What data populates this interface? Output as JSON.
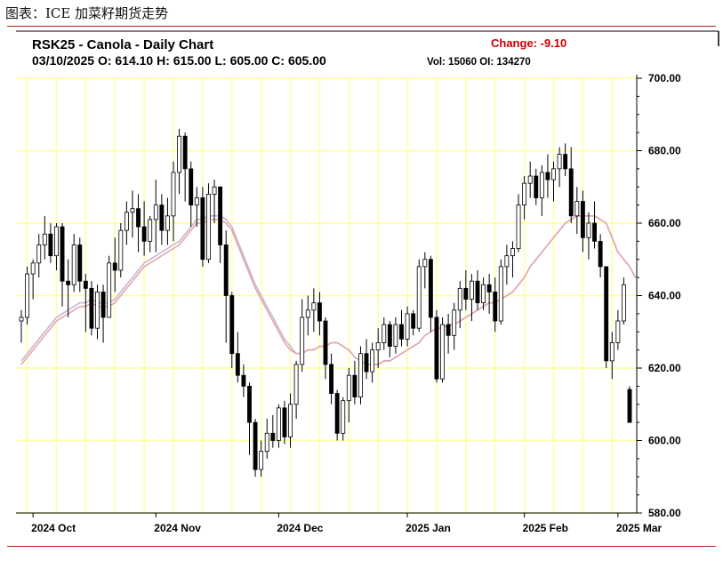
{
  "caption": "图表：ICE 加菜籽期货走势",
  "header": {
    "title": "RSK25 - Canola - Daily Chart",
    "ohlc": "03/10/2025 O: 614.10 H: 615.00 L: 605.00 C: 605.00",
    "volume": "Vol: 15060 OI: 134270",
    "change": "Change: -9.10"
  },
  "colors": {
    "grid": "#ffff99",
    "up": "#ffffff",
    "down": "#000000",
    "ma_a": "#c8b4d8",
    "ma_b": "#e0a8a8",
    "change": "#cc0000",
    "rule": "#b22222"
  },
  "chart_data": {
    "type": "candlestick",
    "ylim": [
      580,
      700
    ],
    "yticks": [
      "700.00",
      "680.00",
      "660.00",
      "640.00",
      "620.00",
      "600.00",
      "580.00"
    ],
    "xtick_labels": [
      "2024 Oct",
      "2024 Nov",
      "2024 Dec",
      "2025 Jan",
      "2025 Feb",
      "2025 Mar"
    ],
    "grid": true,
    "candles": [
      {
        "o": 633,
        "h": 636,
        "l": 627,
        "c": 634
      },
      {
        "o": 634,
        "h": 648,
        "l": 632,
        "c": 646
      },
      {
        "o": 646,
        "h": 650,
        "l": 639,
        "c": 649
      },
      {
        "o": 649,
        "h": 657,
        "l": 645,
        "c": 654
      },
      {
        "o": 654,
        "h": 662,
        "l": 650,
        "c": 657
      },
      {
        "o": 657,
        "h": 660,
        "l": 649,
        "c": 651
      },
      {
        "o": 651,
        "h": 660,
        "l": 647,
        "c": 659
      },
      {
        "o": 659,
        "h": 660,
        "l": 637,
        "c": 644
      },
      {
        "o": 644,
        "h": 650,
        "l": 634,
        "c": 643
      },
      {
        "o": 643,
        "h": 657,
        "l": 641,
        "c": 654
      },
      {
        "o": 654,
        "h": 656,
        "l": 641,
        "c": 644
      },
      {
        "o": 644,
        "h": 646,
        "l": 630,
        "c": 642
      },
      {
        "o": 642,
        "h": 644,
        "l": 629,
        "c": 631
      },
      {
        "o": 631,
        "h": 643,
        "l": 628,
        "c": 641
      },
      {
        "o": 641,
        "h": 643,
        "l": 627,
        "c": 634
      },
      {
        "o": 634,
        "h": 651,
        "l": 634,
        "c": 649
      },
      {
        "o": 649,
        "h": 656,
        "l": 641,
        "c": 647
      },
      {
        "o": 647,
        "h": 660,
        "l": 645,
        "c": 658
      },
      {
        "o": 658,
        "h": 666,
        "l": 654,
        "c": 663
      },
      {
        "o": 663,
        "h": 669,
        "l": 656,
        "c": 664
      },
      {
        "o": 664,
        "h": 668,
        "l": 652,
        "c": 659
      },
      {
        "o": 659,
        "h": 666,
        "l": 651,
        "c": 655
      },
      {
        "o": 655,
        "h": 662,
        "l": 652,
        "c": 661
      },
      {
        "o": 661,
        "h": 672,
        "l": 652,
        "c": 665
      },
      {
        "o": 665,
        "h": 668,
        "l": 654,
        "c": 658
      },
      {
        "o": 658,
        "h": 667,
        "l": 654,
        "c": 662
      },
      {
        "o": 662,
        "h": 677,
        "l": 655,
        "c": 674
      },
      {
        "o": 674,
        "h": 686,
        "l": 668,
        "c": 684
      },
      {
        "o": 684,
        "h": 685,
        "l": 666,
        "c": 675
      },
      {
        "o": 675,
        "h": 677,
        "l": 659,
        "c": 665
      },
      {
        "o": 665,
        "h": 670,
        "l": 659,
        "c": 667
      },
      {
        "o": 667,
        "h": 670,
        "l": 648,
        "c": 650
      },
      {
        "o": 650,
        "h": 671,
        "l": 649,
        "c": 668
      },
      {
        "o": 668,
        "h": 672,
        "l": 660,
        "c": 670
      },
      {
        "o": 670,
        "h": 670,
        "l": 649,
        "c": 654
      },
      {
        "o": 654,
        "h": 658,
        "l": 627,
        "c": 640
      },
      {
        "o": 640,
        "h": 641,
        "l": 620,
        "c": 624
      },
      {
        "o": 624,
        "h": 630,
        "l": 616,
        "c": 618
      },
      {
        "o": 618,
        "h": 621,
        "l": 612,
        "c": 615
      },
      {
        "o": 615,
        "h": 616,
        "l": 596,
        "c": 605
      },
      {
        "o": 605,
        "h": 606,
        "l": 590,
        "c": 592
      },
      {
        "o": 592,
        "h": 600,
        "l": 590,
        "c": 597
      },
      {
        "o": 597,
        "h": 606,
        "l": 595,
        "c": 602
      },
      {
        "o": 602,
        "h": 607,
        "l": 598,
        "c": 600
      },
      {
        "o": 600,
        "h": 610,
        "l": 598,
        "c": 609
      },
      {
        "o": 609,
        "h": 611,
        "l": 599,
        "c": 601
      },
      {
        "o": 601,
        "h": 613,
        "l": 598,
        "c": 610
      },
      {
        "o": 610,
        "h": 622,
        "l": 606,
        "c": 621
      },
      {
        "o": 621,
        "h": 639,
        "l": 619,
        "c": 634
      },
      {
        "o": 634,
        "h": 640,
        "l": 629,
        "c": 636
      },
      {
        "o": 636,
        "h": 642,
        "l": 630,
        "c": 638
      },
      {
        "o": 638,
        "h": 641,
        "l": 629,
        "c": 633
      },
      {
        "o": 633,
        "h": 634,
        "l": 617,
        "c": 621
      },
      {
        "o": 621,
        "h": 624,
        "l": 610,
        "c": 613
      },
      {
        "o": 613,
        "h": 614,
        "l": 600,
        "c": 602
      },
      {
        "o": 602,
        "h": 612,
        "l": 600,
        "c": 611
      },
      {
        "o": 611,
        "h": 620,
        "l": 605,
        "c": 618
      },
      {
        "o": 618,
        "h": 622,
        "l": 610,
        "c": 612
      },
      {
        "o": 612,
        "h": 626,
        "l": 610,
        "c": 624
      },
      {
        "o": 624,
        "h": 628,
        "l": 617,
        "c": 619
      },
      {
        "o": 619,
        "h": 627,
        "l": 616,
        "c": 625
      },
      {
        "o": 625,
        "h": 631,
        "l": 620,
        "c": 627
      },
      {
        "o": 627,
        "h": 634,
        "l": 625,
        "c": 632
      },
      {
        "o": 632,
        "h": 633,
        "l": 623,
        "c": 626
      },
      {
        "o": 626,
        "h": 634,
        "l": 624,
        "c": 632
      },
      {
        "o": 632,
        "h": 636,
        "l": 626,
        "c": 628
      },
      {
        "o": 628,
        "h": 637,
        "l": 626,
        "c": 635
      },
      {
        "o": 635,
        "h": 636,
        "l": 629,
        "c": 631
      },
      {
        "o": 631,
        "h": 650,
        "l": 630,
        "c": 648
      },
      {
        "o": 648,
        "h": 652,
        "l": 642,
        "c": 650
      },
      {
        "o": 650,
        "h": 651,
        "l": 630,
        "c": 634
      },
      {
        "o": 634,
        "h": 636,
        "l": 616,
        "c": 617
      },
      {
        "o": 617,
        "h": 634,
        "l": 616,
        "c": 632
      },
      {
        "o": 632,
        "h": 635,
        "l": 624,
        "c": 629
      },
      {
        "o": 629,
        "h": 638,
        "l": 625,
        "c": 636
      },
      {
        "o": 636,
        "h": 644,
        "l": 631,
        "c": 642
      },
      {
        "o": 642,
        "h": 647,
        "l": 636,
        "c": 639
      },
      {
        "o": 639,
        "h": 646,
        "l": 633,
        "c": 644
      },
      {
        "o": 644,
        "h": 647,
        "l": 636,
        "c": 638
      },
      {
        "o": 638,
        "h": 645,
        "l": 636,
        "c": 643
      },
      {
        "o": 643,
        "h": 646,
        "l": 635,
        "c": 641
      },
      {
        "o": 641,
        "h": 645,
        "l": 630,
        "c": 633
      },
      {
        "o": 633,
        "h": 650,
        "l": 632,
        "c": 648
      },
      {
        "o": 648,
        "h": 654,
        "l": 643,
        "c": 651
      },
      {
        "o": 651,
        "h": 655,
        "l": 645,
        "c": 653
      },
      {
        "o": 653,
        "h": 668,
        "l": 652,
        "c": 665
      },
      {
        "o": 665,
        "h": 673,
        "l": 661,
        "c": 671
      },
      {
        "o": 671,
        "h": 677,
        "l": 667,
        "c": 673
      },
      {
        "o": 673,
        "h": 675,
        "l": 665,
        "c": 667
      },
      {
        "o": 667,
        "h": 676,
        "l": 662,
        "c": 674
      },
      {
        "o": 674,
        "h": 679,
        "l": 667,
        "c": 672
      },
      {
        "o": 672,
        "h": 677,
        "l": 666,
        "c": 675
      },
      {
        "o": 675,
        "h": 681,
        "l": 670,
        "c": 679
      },
      {
        "o": 679,
        "h": 682,
        "l": 673,
        "c": 675
      },
      {
        "o": 675,
        "h": 681,
        "l": 660,
        "c": 662
      },
      {
        "o": 662,
        "h": 670,
        "l": 657,
        "c": 666
      },
      {
        "o": 666,
        "h": 669,
        "l": 652,
        "c": 656
      },
      {
        "o": 656,
        "h": 663,
        "l": 650,
        "c": 660
      },
      {
        "o": 660,
        "h": 666,
        "l": 653,
        "c": 655
      },
      {
        "o": 655,
        "h": 657,
        "l": 645,
        "c": 648
      },
      {
        "o": 648,
        "h": 648,
        "l": 620,
        "c": 622
      },
      {
        "o": 622,
        "h": 630,
        "l": 617,
        "c": 627
      },
      {
        "o": 627,
        "h": 636,
        "l": 625,
        "c": 633
      },
      {
        "o": 633,
        "h": 645,
        "l": 632,
        "c": 643
      },
      {
        "o": 614.1,
        "h": 615,
        "l": 605,
        "c": 605
      }
    ],
    "ma_a": [
      622,
      624,
      626,
      628,
      630,
      632,
      634,
      635,
      636,
      637,
      638,
      638,
      639,
      638,
      638,
      638,
      639,
      641,
      643,
      645,
      647,
      649,
      650,
      651,
      652,
      653,
      654,
      655,
      657,
      659,
      661,
      661,
      662,
      662,
      662,
      661,
      659,
      655,
      651,
      647,
      643,
      640,
      637,
      634,
      631,
      628,
      626,
      624,
      624,
      625,
      625,
      626,
      626,
      627,
      627,
      626,
      625,
      623,
      622,
      621,
      621,
      621,
      622,
      622,
      623,
      624,
      625,
      626,
      627,
      629,
      630,
      631,
      631,
      632,
      632,
      633,
      634,
      635,
      636,
      637,
      638,
      638,
      639,
      640,
      641,
      643,
      645,
      648,
      650,
      652,
      654,
      656,
      658,
      660,
      661,
      662,
      662,
      662,
      662,
      661,
      660,
      656,
      652,
      650,
      648,
      645
    ],
    "ma_b": [
      621,
      623,
      625,
      627,
      629,
      631,
      633,
      634,
      635,
      636,
      637,
      637,
      638,
      637,
      637,
      637,
      638,
      640,
      642,
      644,
      646,
      648,
      649,
      650,
      651,
      652,
      653,
      654,
      656,
      658,
      660,
      660,
      661,
      661,
      661,
      660,
      658,
      654,
      650,
      646,
      642,
      639,
      636,
      633,
      630,
      627,
      625,
      624,
      624,
      625,
      625,
      626,
      626,
      627,
      627,
      626,
      625,
      623,
      622,
      621,
      621,
      621,
      622,
      622,
      623,
      624,
      625,
      626,
      627,
      629,
      630,
      631,
      631,
      632,
      632,
      633,
      634,
      635,
      636,
      637,
      638,
      638,
      639,
      640,
      641,
      643,
      645,
      648,
      650,
      652,
      654,
      656,
      658,
      660,
      661,
      662,
      662,
      662,
      662,
      661,
      660,
      656,
      652,
      650,
      648,
      645
    ]
  }
}
